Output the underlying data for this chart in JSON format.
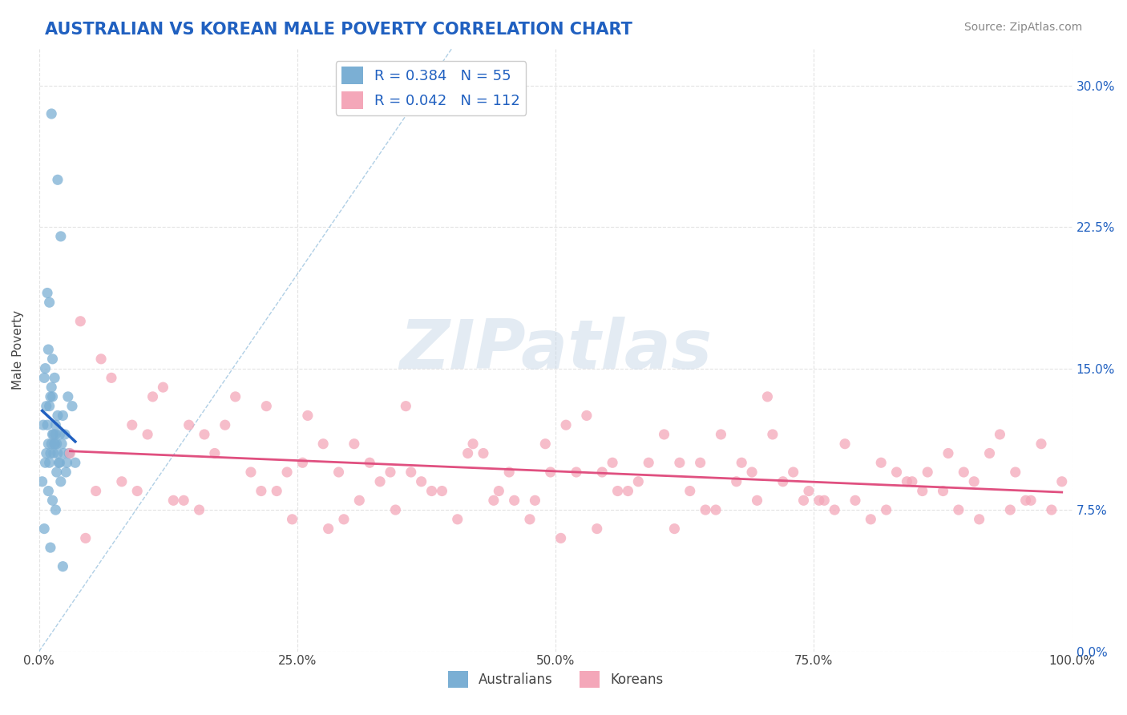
{
  "title": "AUSTRALIAN VS KOREAN MALE POVERTY CORRELATION CHART",
  "source_text": "Source: ZipAtlas.com",
  "xlabel": "",
  "ylabel": "Male Poverty",
  "xlim": [
    0.0,
    100.0
  ],
  "ylim": [
    0.0,
    32.0
  ],
  "ytick_labels": [
    "0.0%",
    "7.5%",
    "15.0%",
    "22.5%",
    "30.0%"
  ],
  "ytick_values": [
    0.0,
    7.5,
    15.0,
    22.5,
    30.0
  ],
  "xtick_labels": [
    "0.0%",
    "25.0%",
    "50.0%",
    "75.0%",
    "100.0%"
  ],
  "xtick_values": [
    0.0,
    25.0,
    50.0,
    75.0,
    100.0
  ],
  "R_australian": 0.384,
  "N_australian": 55,
  "R_korean": 0.042,
  "N_korean": 112,
  "color_australian": "#7BAFD4",
  "color_korean": "#F4A7B9",
  "color_line_australian": "#2060C0",
  "color_line_korean": "#E05080",
  "watermark_text": "ZIPatlas",
  "watermark_color": "#C8D8E8",
  "legend_R_color": "#2060C0",
  "background_color": "#FFFFFF",
  "grid_color": "#DDDDDD",
  "aus_x": [
    1.2,
    2.1,
    1.8,
    1.5,
    2.8,
    3.2,
    1.0,
    1.3,
    0.8,
    1.6,
    2.0,
    1.1,
    0.9,
    1.4,
    2.3,
    1.7,
    0.6,
    1.9,
    2.5,
    1.2,
    0.7,
    1.8,
    2.2,
    1.3,
    0.5,
    1.6,
    2.9,
    1.0,
    0.4,
    2.7,
    1.5,
    0.8,
    1.1,
    3.5,
    1.3,
    0.9,
    2.4,
    1.7,
    0.6,
    1.2,
    2.0,
    1.4,
    0.3,
    1.8,
    2.6,
    1.0,
    0.7,
    1.5,
    2.1,
    0.9,
    1.3,
    1.6,
    0.5,
    1.1,
    2.3
  ],
  "aus_y": [
    28.5,
    22.0,
    25.0,
    14.5,
    13.5,
    13.0,
    18.5,
    15.5,
    19.0,
    12.0,
    11.5,
    13.5,
    16.0,
    10.5,
    12.5,
    11.0,
    15.0,
    10.0,
    11.5,
    14.0,
    13.0,
    12.5,
    11.0,
    13.5,
    14.5,
    11.5,
    10.5,
    13.0,
    12.0,
    10.0,
    11.0,
    12.0,
    10.5,
    10.0,
    11.5,
    11.0,
    10.5,
    9.5,
    10.0,
    11.0,
    10.0,
    11.5,
    9.0,
    10.5,
    9.5,
    10.0,
    10.5,
    11.0,
    9.0,
    8.5,
    8.0,
    7.5,
    6.5,
    5.5,
    4.5
  ],
  "kor_x": [
    3.0,
    5.5,
    8.0,
    10.5,
    13.0,
    15.5,
    18.0,
    20.5,
    23.0,
    25.5,
    28.0,
    30.5,
    33.0,
    35.5,
    38.0,
    40.5,
    43.0,
    45.5,
    48.0,
    50.5,
    53.0,
    55.5,
    58.0,
    60.5,
    63.0,
    65.5,
    68.0,
    70.5,
    73.0,
    75.5,
    78.0,
    80.5,
    83.0,
    85.5,
    88.0,
    90.5,
    93.0,
    95.5,
    98.0,
    4.0,
    7.0,
    11.0,
    14.5,
    17.0,
    21.5,
    24.0,
    27.5,
    31.0,
    34.5,
    37.0,
    41.5,
    44.0,
    47.5,
    51.0,
    54.5,
    57.0,
    61.5,
    64.0,
    67.5,
    71.0,
    74.5,
    77.0,
    81.5,
    84.0,
    87.5,
    91.0,
    94.5,
    97.0,
    6.0,
    12.0,
    16.0,
    22.0,
    26.0,
    32.0,
    36.0,
    42.0,
    46.0,
    52.0,
    56.0,
    62.0,
    66.0,
    72.0,
    76.0,
    82.0,
    86.0,
    92.0,
    96.0,
    9.0,
    19.0,
    29.0,
    39.0,
    49.0,
    59.0,
    69.0,
    79.0,
    89.0,
    99.0,
    4.5,
    14.0,
    24.5,
    34.0,
    44.5,
    54.0,
    64.5,
    74.0,
    84.5,
    94.0,
    9.5,
    29.5,
    49.5,
    69.5,
    89.5
  ],
  "kor_y": [
    10.5,
    8.5,
    9.0,
    11.5,
    8.0,
    7.5,
    12.0,
    9.5,
    8.5,
    10.0,
    6.5,
    11.0,
    9.0,
    13.0,
    8.5,
    7.0,
    10.5,
    9.5,
    8.0,
    6.0,
    12.5,
    10.0,
    9.0,
    11.5,
    8.5,
    7.5,
    10.0,
    13.5,
    9.5,
    8.0,
    11.0,
    7.0,
    9.5,
    8.5,
    10.5,
    9.0,
    11.5,
    8.0,
    7.5,
    17.5,
    14.5,
    13.5,
    12.0,
    10.5,
    8.5,
    9.5,
    11.0,
    8.0,
    7.5,
    9.0,
    10.5,
    8.0,
    7.0,
    12.0,
    9.5,
    8.5,
    6.5,
    10.0,
    9.0,
    11.5,
    8.5,
    7.5,
    10.0,
    9.0,
    8.5,
    7.0,
    9.5,
    11.0,
    15.5,
    14.0,
    11.5,
    13.0,
    12.5,
    10.0,
    9.5,
    11.0,
    8.0,
    9.5,
    8.5,
    10.0,
    11.5,
    9.0,
    8.0,
    7.5,
    9.5,
    10.5,
    8.0,
    12.0,
    13.5,
    9.5,
    8.5,
    11.0,
    10.0,
    9.5,
    8.0,
    7.5,
    9.0,
    6.0,
    8.0,
    7.0,
    9.5,
    8.5,
    6.5,
    7.5,
    8.0,
    9.0,
    7.5,
    8.5,
    7.0,
    9.5,
    8.0,
    9.5
  ]
}
